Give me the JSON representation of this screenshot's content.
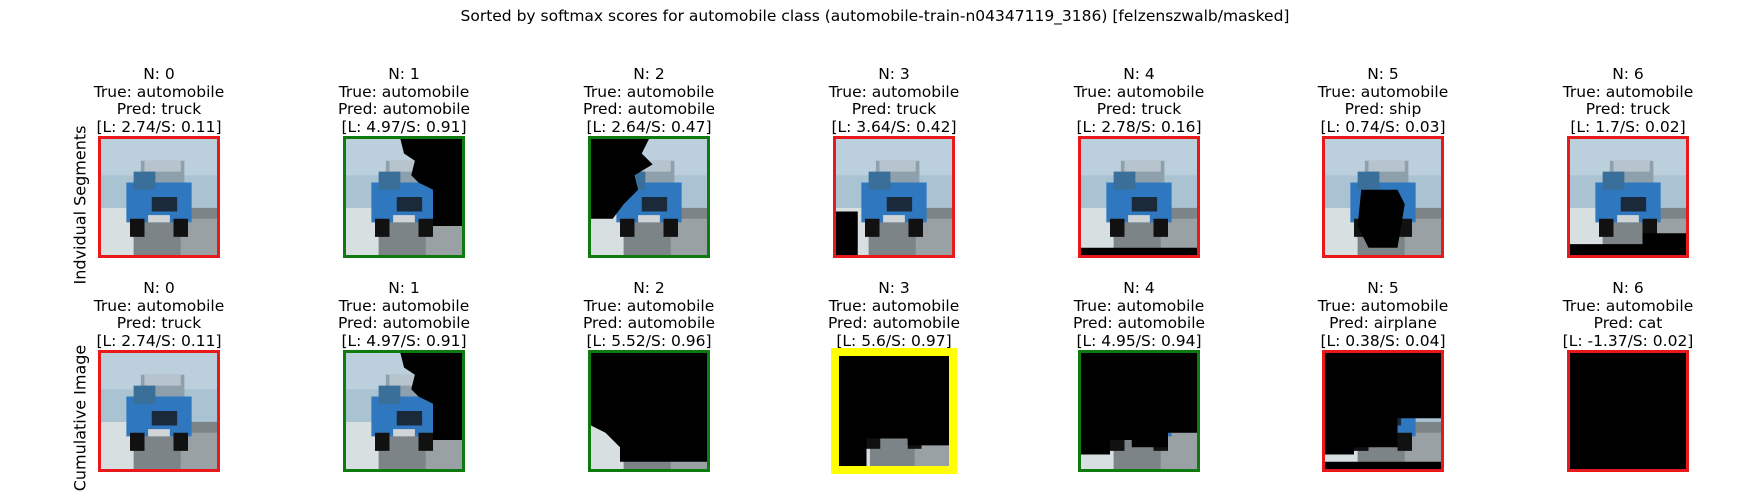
{
  "title": "Sorted by softmax scores for automobile class (automobile-train-n04347119_3186) [felzenszwalb/masked]",
  "rows": [
    {
      "label": "Indvidual Segments",
      "panels": [
        {
          "n": "N: 0",
          "true": "True: automobile",
          "pred": "Pred: truck",
          "scores": "[L: 2.74/S: 0.11]",
          "status": "wrong",
          "mask": "none"
        },
        {
          "n": "N: 1",
          "true": "True: automobile",
          "pred": "Pred: automobile",
          "scores": "[L: 4.97/S: 0.91]",
          "status": "correct",
          "mask": "right-region"
        },
        {
          "n": "N: 2",
          "true": "True: automobile",
          "pred": "Pred: automobile",
          "scores": "[L: 2.64/S: 0.47]",
          "status": "correct",
          "mask": "left-region"
        },
        {
          "n": "N: 3",
          "true": "True: automobile",
          "pred": "Pred: truck",
          "scores": "[L: 3.64/S: 0.42]",
          "status": "wrong",
          "mask": "bottom-left"
        },
        {
          "n": "N: 4",
          "true": "True: automobile",
          "pred": "Pred: truck",
          "scores": "[L: 2.78/S: 0.16]",
          "status": "wrong",
          "mask": "bottom-strip"
        },
        {
          "n": "N: 5",
          "true": "True: automobile",
          "pred": "Pred: ship",
          "scores": "[L: 0.74/S: 0.03]",
          "status": "wrong",
          "mask": "center-blob"
        },
        {
          "n": "N: 6",
          "true": "True: automobile",
          "pred": "Pred: truck",
          "scores": "[L: 1.7/S: 0.02]",
          "status": "wrong",
          "mask": "bottom-right"
        }
      ]
    },
    {
      "label": "Cumulative Image",
      "panels": [
        {
          "n": "N: 0",
          "true": "True: automobile",
          "pred": "Pred: truck",
          "scores": "[L: 2.74/S: 0.11]",
          "status": "wrong",
          "mask": "none"
        },
        {
          "n": "N: 1",
          "true": "True: automobile",
          "pred": "Pred: automobile",
          "scores": "[L: 4.97/S: 0.91]",
          "status": "correct",
          "mask": "right-region"
        },
        {
          "n": "N: 2",
          "true": "True: automobile",
          "pred": "Pred: automobile",
          "scores": "[L: 5.52/S: 0.96]",
          "status": "correct",
          "mask": "cum-2"
        },
        {
          "n": "N: 3",
          "true": "True: automobile",
          "pred": "Pred: automobile",
          "scores": "[L: 5.6/S: 0.97]",
          "status": "best",
          "mask": "cum-3"
        },
        {
          "n": "N: 4",
          "true": "True: automobile",
          "pred": "Pred: automobile",
          "scores": "[L: 4.95/S: 0.94]",
          "status": "correct",
          "mask": "cum-4"
        },
        {
          "n": "N: 5",
          "true": "True: automobile",
          "pred": "Pred: airplane",
          "scores": "[L: 0.38/S: 0.04]",
          "status": "wrong",
          "mask": "cum-5"
        },
        {
          "n": "N: 6",
          "true": "True: automobile",
          "pred": "Pred: cat",
          "scores": "[L: -1.37/S: 0.02]",
          "status": "wrong",
          "mask": "all"
        }
      ]
    }
  ],
  "colors": {
    "wrong_border": "#e8181b",
    "correct_border": "#0f7a0f",
    "best_border": "#ffff00",
    "sky": "#a9c3d3",
    "car_blue": "#2f78c0",
    "road": "#7d8487",
    "snow": "#e8eef0"
  }
}
